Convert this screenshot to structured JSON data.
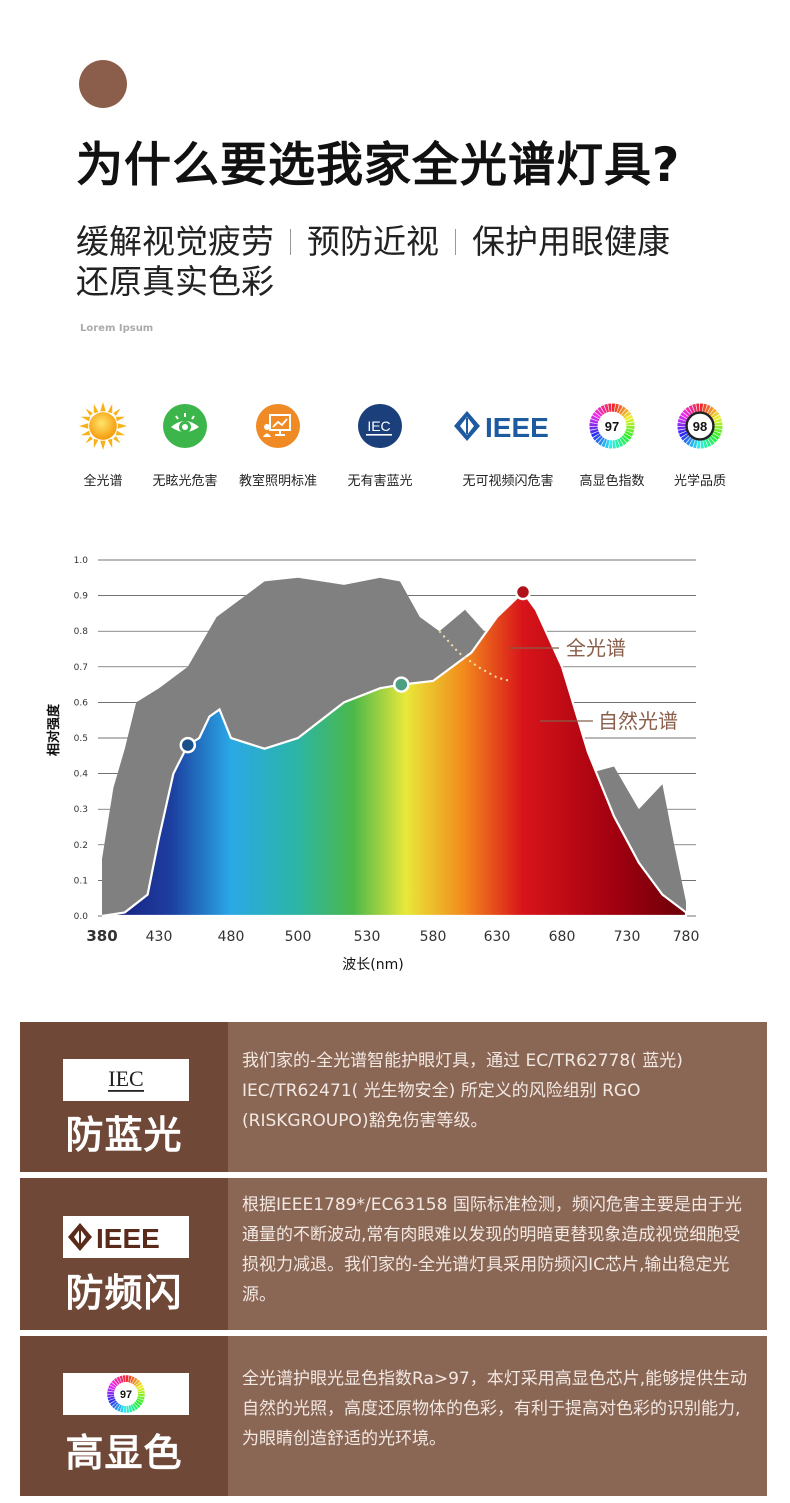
{
  "header": {
    "title": "为什么要选我家全光谱灯具?",
    "subtitle_items": [
      "缓解视觉疲劳",
      "预防近视",
      "保护用眼健康",
      "还原真实色彩"
    ],
    "lorem": "Lorem Ipsum"
  },
  "features": [
    {
      "label": "全光谱",
      "icon": "sun-icon"
    },
    {
      "label": "无眩光危害",
      "icon": "eye-icon"
    },
    {
      "label": "教室照明标准",
      "icon": "classroom-icon"
    },
    {
      "label": "无有害蓝光",
      "icon": "iec-icon",
      "badge_text": "IEC"
    },
    {
      "label": "无可视频闪危害",
      "icon": "ieee-icon",
      "badge_text": "IEEE"
    },
    {
      "label": "高显色指数",
      "icon": "cri-97-icon",
      "badge_text": "97"
    },
    {
      "label": "光学品质",
      "icon": "cri-98-icon",
      "badge_text": "98"
    }
  ],
  "chart_data": {
    "type": "area",
    "xlabel": "波长(nm)",
    "ylabel": "相对强度",
    "x_ticks": [
      380,
      430,
      480,
      500,
      530,
      580,
      630,
      680,
      730,
      780
    ],
    "y_ticks": [
      "0.0",
      "0.1",
      "0.2",
      "0.3",
      "0.4",
      "0.5",
      "0.6",
      "0.7",
      "0.8",
      "0.9",
      "1.0"
    ],
    "ylim": [
      0,
      1.0
    ],
    "grid": true,
    "series": [
      {
        "name": "全光谱",
        "color": "#808080",
        "points": [
          [
            380,
            0.16
          ],
          [
            390,
            0.36
          ],
          [
            400,
            0.47
          ],
          [
            410,
            0.6
          ],
          [
            430,
            0.64
          ],
          [
            450,
            0.7
          ],
          [
            470,
            0.84
          ],
          [
            490,
            0.94
          ],
          [
            500,
            0.95
          ],
          [
            520,
            0.93
          ],
          [
            540,
            0.95
          ],
          [
            555,
            0.94
          ],
          [
            570,
            0.84
          ],
          [
            585,
            0.8
          ],
          [
            605,
            0.86
          ],
          [
            620,
            0.8
          ],
          [
            640,
            0.62
          ],
          [
            660,
            0.52
          ],
          [
            680,
            0.5
          ],
          [
            700,
            0.4
          ],
          [
            720,
            0.42
          ],
          [
            740,
            0.3
          ],
          [
            760,
            0.37
          ],
          [
            770,
            0.2
          ],
          [
            780,
            0.04
          ]
        ]
      },
      {
        "name": "自然光谱",
        "color": "#ffffff",
        "points": [
          [
            380,
            0.0
          ],
          [
            400,
            0.01
          ],
          [
            420,
            0.06
          ],
          [
            430,
            0.22
          ],
          [
            440,
            0.4
          ],
          [
            450,
            0.48
          ],
          [
            458,
            0.5
          ],
          [
            465,
            0.56
          ],
          [
            472,
            0.58
          ],
          [
            480,
            0.5
          ],
          [
            490,
            0.47
          ],
          [
            500,
            0.5
          ],
          [
            520,
            0.6
          ],
          [
            540,
            0.64
          ],
          [
            556,
            0.65
          ],
          [
            580,
            0.66
          ],
          [
            610,
            0.74
          ],
          [
            630,
            0.84
          ],
          [
            650,
            0.91
          ],
          [
            660,
            0.86
          ],
          [
            680,
            0.7
          ],
          [
            700,
            0.46
          ],
          [
            720,
            0.28
          ],
          [
            740,
            0.15
          ],
          [
            760,
            0.06
          ],
          [
            780,
            0.01
          ]
        ]
      }
    ],
    "markers": [
      {
        "x": 450,
        "y": 0.48,
        "color": "#1a4f8a"
      },
      {
        "x": 556,
        "y": 0.65,
        "color": "#4aa080"
      },
      {
        "x": 650,
        "y": 0.91,
        "color": "#b0101a"
      }
    ]
  },
  "panels": [
    {
      "badge": "IEC",
      "badge_icon": "iec-logo-icon",
      "title": "防蓝光",
      "text": "我们家的-全光谱智能护眼灯具，通过 EC/TR62778( 蓝光) IEC/TR62471( 光生物安全) 所定义的风险组别 RGO (RISKGROUPO)豁免伤害等级。"
    },
    {
      "badge": "IEEE",
      "badge_icon": "ieee-logo-icon",
      "title": "防频闪",
      "text": "根据IEEE1789*/EC63158 国际标准检测，频闪危害主要是由于光通量的不断波动,常有肉眼难以发现的明暗更替现象造成视觉细胞受损视力减退。我们家的-全光谱灯具采用防频闪IC芯片,输出稳定光源。"
    },
    {
      "badge": "97",
      "badge_icon": "cri-97-logo-icon",
      "title": "高显色",
      "text": "全光谱护眼光显色指数Ra>97，本灯采用高显色芯片,能够提供生动自然的光照，高度还原物体的色彩，有利于提高对色彩的识别能力,为眼睛创造舒适的光环境。"
    }
  ]
}
